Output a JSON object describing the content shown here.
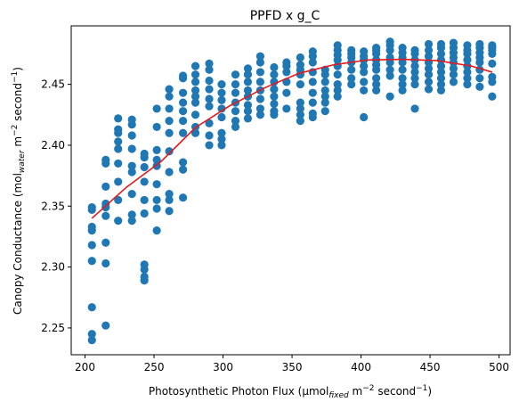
{
  "chart_data": {
    "type": "scatter",
    "title": "PPFD x g_C",
    "xlabel": {
      "main": "Photosynthetic Photon Flux (µmol",
      "sub": "fixed",
      "unit_a": " m",
      "sup_a": "−2",
      "unit_b": " second",
      "sup_b": "−1",
      "close": ")"
    },
    "ylabel": {
      "main": "Canopy Conductance (mol",
      "sub": "water",
      "unit_a": " m",
      "sup_a": "−2",
      "unit_b": " second",
      "sup_b": "−1",
      "close": ")"
    },
    "xlim": [
      190,
      508
    ],
    "ylim": [
      2.228,
      2.498
    ],
    "xticks": [
      200,
      250,
      300,
      350,
      400,
      450,
      500
    ],
    "yticks": [
      2.25,
      2.3,
      2.35,
      2.4,
      2.45
    ],
    "xtick_labels": [
      "200",
      "250",
      "300",
      "350",
      "400",
      "450",
      "500"
    ],
    "ytick_labels": [
      "2.25",
      "2.30",
      "2.35",
      "2.40",
      "2.45"
    ],
    "grid": false,
    "colors": {
      "points": "#1f77b4",
      "fit": "#e41a1c"
    },
    "series": [
      {
        "kind": "points",
        "columns": [
          {
            "x": 205,
            "y": [
              2.24,
              2.245,
              2.267,
              2.305,
              2.318,
              2.33,
              2.333,
              2.347,
              2.349
            ]
          },
          {
            "x": 215,
            "y": [
              2.252,
              2.303,
              2.32,
              2.342,
              2.349,
              2.352,
              2.366,
              2.385,
              2.388
            ]
          },
          {
            "x": 224,
            "y": [
              2.338,
              2.355,
              2.37,
              2.385,
              2.397,
              2.403,
              2.41,
              2.413,
              2.422
            ]
          },
          {
            "x": 234,
            "y": [
              2.338,
              2.343,
              2.36,
              2.378,
              2.383,
              2.397,
              2.408,
              2.417,
              2.421
            ]
          },
          {
            "x": 243,
            "y": [
              2.289,
              2.292,
              2.298,
              2.302,
              2.344,
              2.355,
              2.37,
              2.382,
              2.39,
              2.393
            ]
          },
          {
            "x": 252,
            "y": [
              2.33,
              2.348,
              2.355,
              2.368,
              2.383,
              2.388,
              2.396,
              2.415,
              2.43
            ]
          },
          {
            "x": 261,
            "y": [
              2.346,
              2.355,
              2.36,
              2.378,
              2.395,
              2.41,
              2.42,
              2.43,
              2.44,
              2.446
            ]
          },
          {
            "x": 271,
            "y": [
              2.357,
              2.38,
              2.386,
              2.41,
              2.42,
              2.428,
              2.435,
              2.443,
              2.455,
              2.457
            ]
          },
          {
            "x": 280,
            "y": [
              2.41,
              2.415,
              2.425,
              2.435,
              2.44,
              2.445,
              2.452,
              2.458,
              2.465
            ]
          },
          {
            "x": 290,
            "y": [
              2.4,
              2.408,
              2.418,
              2.432,
              2.438,
              2.446,
              2.453,
              2.462,
              2.467
            ]
          },
          {
            "x": 299,
            "y": [
              2.4,
              2.405,
              2.41,
              2.423,
              2.43,
              2.437,
              2.443,
              2.45
            ]
          },
          {
            "x": 309,
            "y": [
              2.415,
              2.42,
              2.428,
              2.435,
              2.443,
              2.45,
              2.458
            ]
          },
          {
            "x": 318,
            "y": [
              2.422,
              2.428,
              2.433,
              2.44,
              2.445,
              2.452,
              2.458,
              2.463
            ]
          },
          {
            "x": 327,
            "y": [
              2.425,
              2.43,
              2.438,
              2.445,
              2.452,
              2.46,
              2.468,
              2.473
            ]
          },
          {
            "x": 337,
            "y": [
              2.425,
              2.428,
              2.434,
              2.44,
              2.446,
              2.452,
              2.458,
              2.464
            ]
          },
          {
            "x": 346,
            "y": [
              2.43,
              2.443,
              2.452,
              2.46,
              2.465,
              2.468
            ]
          },
          {
            "x": 356,
            "y": [
              2.42,
              2.425,
              2.43,
              2.435,
              2.45,
              2.458,
              2.462,
              2.466,
              2.472
            ]
          },
          {
            "x": 365,
            "y": [
              2.423,
              2.426,
              2.435,
              2.443,
              2.452,
              2.46,
              2.468,
              2.473,
              2.477
            ]
          },
          {
            "x": 374,
            "y": [
              2.428,
              2.435,
              2.44,
              2.445,
              2.452,
              2.458,
              2.462
            ]
          },
          {
            "x": 383,
            "y": [
              2.44,
              2.445,
              2.45,
              2.458,
              2.465,
              2.47,
              2.474,
              2.478,
              2.482
            ]
          },
          {
            "x": 393,
            "y": [
              2.45,
              2.455,
              2.462,
              2.468,
              2.472,
              2.475,
              2.478
            ]
          },
          {
            "x": 402,
            "y": [
              2.423,
              2.445,
              2.452,
              2.46,
              2.465,
              2.47,
              2.473,
              2.477
            ]
          },
          {
            "x": 411,
            "y": [
              2.445,
              2.45,
              2.455,
              2.462,
              2.466,
              2.47,
              2.475,
              2.478,
              2.48
            ]
          },
          {
            "x": 421,
            "y": [
              2.44,
              2.457,
              2.462,
              2.468,
              2.472,
              2.478,
              2.482,
              2.485
            ]
          },
          {
            "x": 430,
            "y": [
              2.445,
              2.45,
              2.455,
              2.462,
              2.468,
              2.472,
              2.476,
              2.48
            ]
          },
          {
            "x": 439,
            "y": [
              2.43,
              2.45,
              2.455,
              2.46,
              2.465,
              2.47,
              2.475,
              2.478
            ]
          },
          {
            "x": 449,
            "y": [
              2.446,
              2.452,
              2.458,
              2.463,
              2.468,
              2.473,
              2.478,
              2.483
            ]
          },
          {
            "x": 458,
            "y": [
              2.445,
              2.45,
              2.455,
              2.46,
              2.465,
              2.47,
              2.475,
              2.48,
              2.483
            ]
          },
          {
            "x": 467,
            "y": [
              2.452,
              2.458,
              2.463,
              2.468,
              2.472,
              2.476,
              2.48,
              2.484
            ]
          },
          {
            "x": 477,
            "y": [
              2.45,
              2.455,
              2.46,
              2.465,
              2.47,
              2.475,
              2.478,
              2.482
            ]
          },
          {
            "x": 486,
            "y": [
              2.448,
              2.455,
              2.462,
              2.468,
              2.472,
              2.476,
              2.48,
              2.483
            ]
          },
          {
            "x": 495,
            "y": [
              2.44,
              2.452,
              2.456,
              2.467,
              2.475,
              2.478,
              2.48,
              2.482
            ]
          }
        ]
      },
      {
        "kind": "fit",
        "x": [
          205,
          230,
          255,
          280,
          305,
          330,
          355,
          380,
          405,
          430,
          455,
          480,
          495
        ],
        "y": [
          2.34,
          2.3655,
          2.3865,
          2.4145,
          2.4325,
          2.447,
          2.459,
          2.466,
          2.47,
          2.4705,
          2.4695,
          2.465,
          2.46
        ]
      }
    ]
  }
}
